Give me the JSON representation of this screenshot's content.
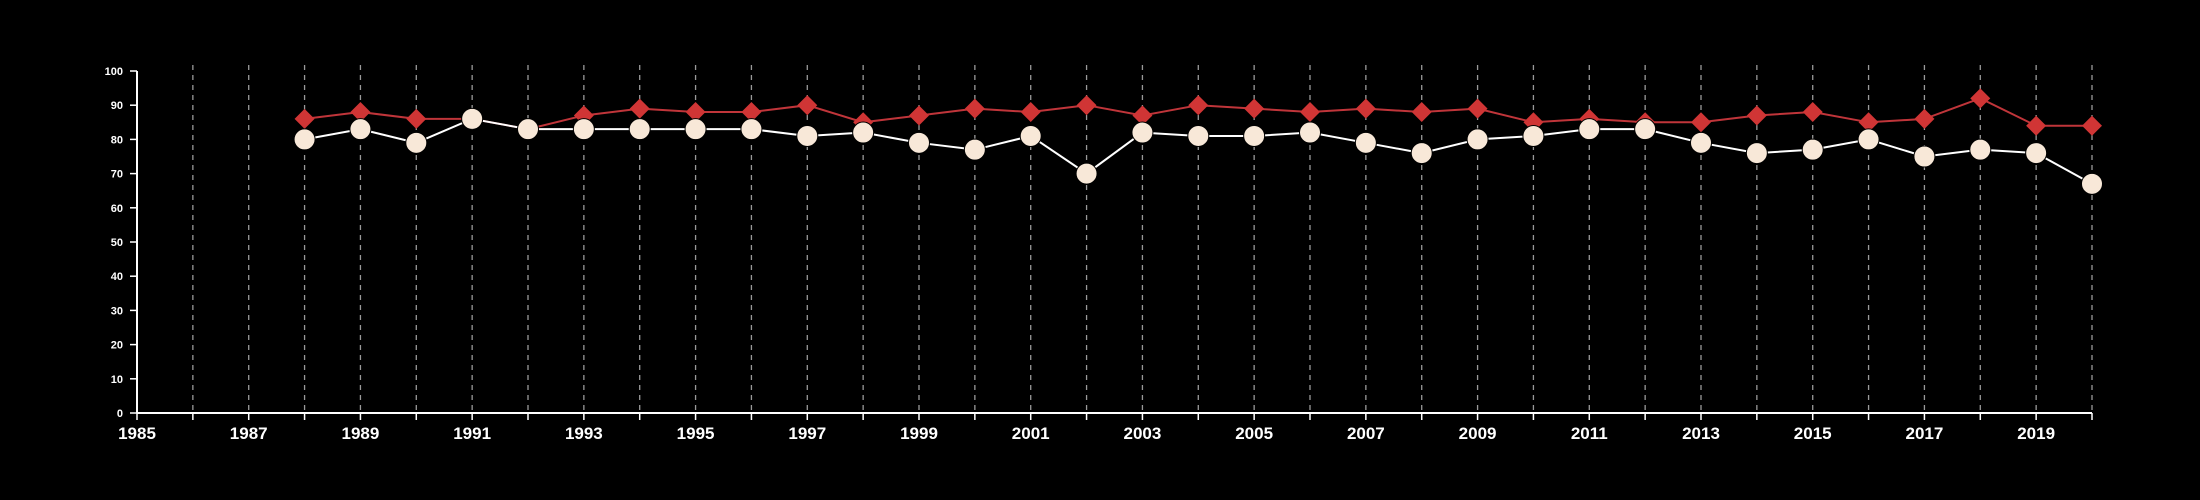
{
  "chart_data": {
    "type": "line",
    "xlim": [
      1985,
      2020
    ],
    "ylim": [
      0,
      100
    ],
    "x_ticks": [
      1985,
      1987,
      1989,
      1991,
      1993,
      1995,
      1997,
      1999,
      2001,
      2003,
      2005,
      2007,
      2009,
      2011,
      2013,
      2015,
      2017,
      2019
    ],
    "y_ticks": [
      0,
      10,
      20,
      30,
      40,
      50,
      60,
      70,
      80,
      90,
      100
    ],
    "grid": "vertical dashed lines at each year",
    "x": [
      1988,
      1989,
      1990,
      1991,
      1992,
      1993,
      1994,
      1995,
      1996,
      1997,
      1998,
      1999,
      2000,
      2001,
      2002,
      2003,
      2004,
      2005,
      2006,
      2007,
      2008,
      2009,
      2010,
      2011,
      2012,
      2013,
      2014,
      2015,
      2016,
      2017,
      2018,
      2019,
      2020
    ],
    "series": [
      {
        "marker": "diamond",
        "color": "#d03535",
        "values": [
          86,
          88,
          86,
          86,
          83,
          87,
          89,
          88,
          88,
          90,
          85,
          87,
          89,
          88,
          90,
          87,
          90,
          89,
          88,
          89,
          88,
          89,
          85,
          86,
          85,
          85,
          87,
          88,
          85,
          86,
          92,
          84,
          84
        ]
      },
      {
        "marker": "circle",
        "color": "#f8e8d8",
        "values": [
          80,
          83,
          79,
          86,
          83,
          83,
          83,
          83,
          83,
          81,
          82,
          79,
          77,
          81,
          70,
          82,
          81,
          81,
          82,
          79,
          76,
          80,
          81,
          83,
          83,
          79,
          76,
          77,
          80,
          75,
          77,
          76,
          67
        ]
      }
    ]
  }
}
